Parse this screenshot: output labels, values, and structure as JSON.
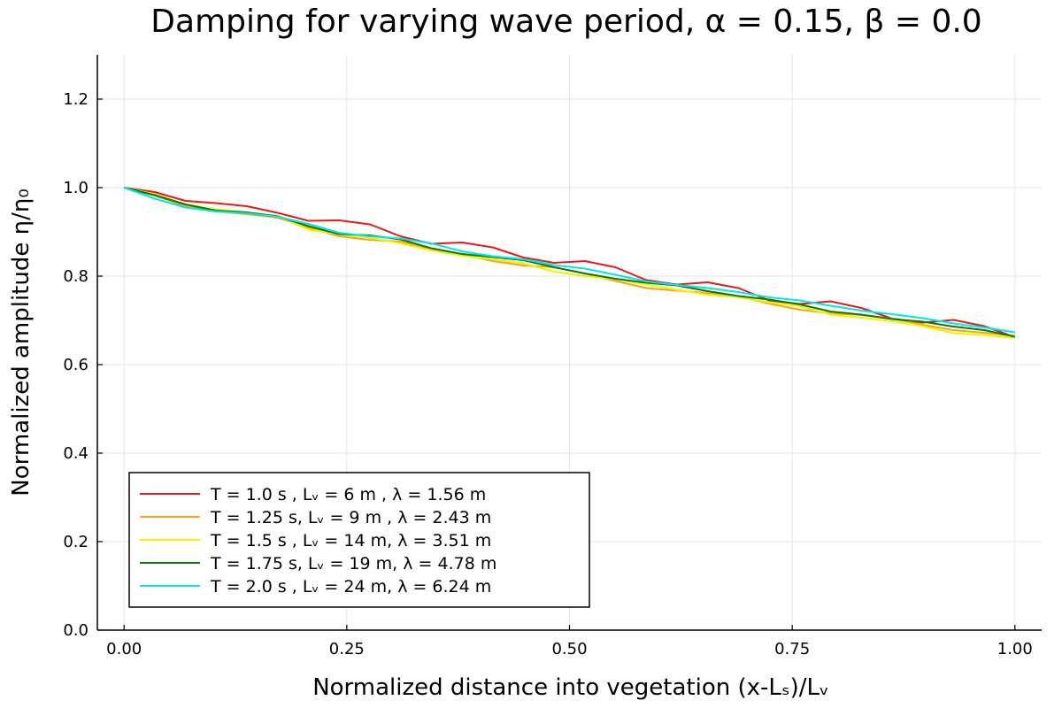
{
  "chart_data": {
    "type": "line",
    "title": "Damping for varying wave period, α = 0.15, β = 0.0",
    "xlabel": "Normalized distance into vegetation (x-Lₛ)/Lᵥ",
    "ylabel": "Normalized amplitude η/η₀",
    "xlim": [
      -0.03,
      1.03
    ],
    "ylim": [
      0.0,
      1.3
    ],
    "xticks": [
      0.0,
      0.25,
      0.5,
      0.75,
      1.0
    ],
    "xtick_labels": [
      "0.00",
      "0.25",
      "0.50",
      "0.75",
      "1.00"
    ],
    "yticks": [
      0.0,
      0.2,
      0.4,
      0.6,
      0.8,
      1.0,
      1.2
    ],
    "ytick_labels": [
      "0.0",
      "0.2",
      "0.4",
      "0.6",
      "0.8",
      "1.0",
      "1.2"
    ],
    "grid": true,
    "legend_position": "bottom-left",
    "x": [
      0.0,
      0.0345,
      0.069,
      0.1034,
      0.1379,
      0.1724,
      0.2069,
      0.2414,
      0.2759,
      0.3103,
      0.3448,
      0.3793,
      0.4138,
      0.4483,
      0.4828,
      0.5172,
      0.5517,
      0.5862,
      0.6207,
      0.6552,
      0.6897,
      0.7241,
      0.7586,
      0.7931,
      0.8276,
      0.8621,
      0.8966,
      0.931,
      0.9655,
      1.0
    ],
    "series": [
      {
        "name": "T = 1.0 s , Lᵥ = 6 m , λ = 1.56 m",
        "color": "#e41a1c",
        "values": [
          1.0,
          0.99,
          0.97,
          0.965,
          0.958,
          0.943,
          0.925,
          0.926,
          0.917,
          0.89,
          0.873,
          0.876,
          0.865,
          0.842,
          0.83,
          0.834,
          0.82,
          0.791,
          0.781,
          0.786,
          0.773,
          0.745,
          0.737,
          0.743,
          0.728,
          0.704,
          0.695,
          0.701,
          0.687,
          0.662
        ]
      },
      {
        "name": "T = 1.25 s, Lᵥ = 9 m , λ = 2.43 m",
        "color": "#ffa500",
        "values": [
          1.0,
          0.982,
          0.958,
          0.946,
          0.94,
          0.932,
          0.91,
          0.89,
          0.882,
          0.878,
          0.86,
          0.85,
          0.834,
          0.824,
          0.82,
          0.806,
          0.789,
          0.773,
          0.767,
          0.762,
          0.754,
          0.738,
          0.724,
          0.716,
          0.712,
          0.704,
          0.69,
          0.678,
          0.672,
          0.665
        ]
      },
      {
        "name": "T = 1.5 s , Lᵥ = 14 m, λ = 3.51 m",
        "color": "#f2f200",
        "values": [
          1.0,
          0.985,
          0.962,
          0.951,
          0.944,
          0.936,
          0.905,
          0.895,
          0.887,
          0.874,
          0.858,
          0.846,
          0.838,
          0.829,
          0.81,
          0.8,
          0.793,
          0.781,
          0.769,
          0.758,
          0.752,
          0.741,
          0.732,
          0.713,
          0.706,
          0.698,
          0.687,
          0.671,
          0.667,
          0.66
        ]
      },
      {
        "name": "T = 1.75 s, Lᵥ = 19 m, λ = 4.78 m",
        "color": "#0a7a0a",
        "values": [
          1.0,
          0.983,
          0.962,
          0.948,
          0.944,
          0.935,
          0.913,
          0.895,
          0.892,
          0.883,
          0.863,
          0.85,
          0.843,
          0.836,
          0.82,
          0.806,
          0.794,
          0.785,
          0.779,
          0.766,
          0.755,
          0.747,
          0.736,
          0.72,
          0.713,
          0.703,
          0.697,
          0.686,
          0.678,
          0.663
        ]
      },
      {
        "name": "T = 2.0 s , Lᵥ = 24 m, λ = 6.24 m",
        "color": "#00e5ee",
        "values": [
          1.0,
          0.975,
          0.955,
          0.946,
          0.942,
          0.934,
          0.918,
          0.898,
          0.89,
          0.885,
          0.874,
          0.856,
          0.845,
          0.838,
          0.825,
          0.817,
          0.803,
          0.788,
          0.78,
          0.773,
          0.764,
          0.752,
          0.745,
          0.733,
          0.722,
          0.714,
          0.705,
          0.693,
          0.684,
          0.673
        ]
      }
    ]
  }
}
